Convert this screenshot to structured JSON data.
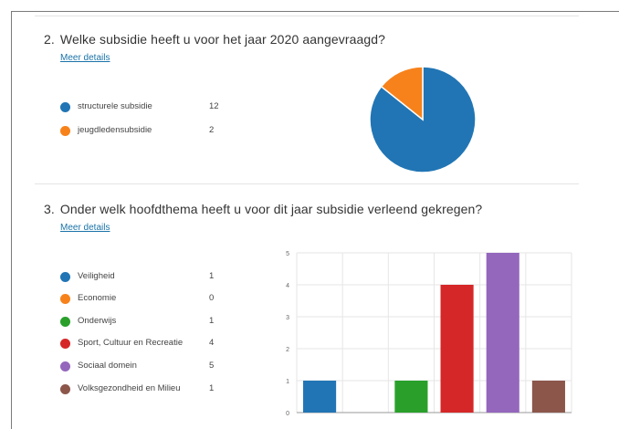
{
  "questions": [
    {
      "number": "2.",
      "title": "Welke subsidie heeft u voor het jaar 2020 aangevraagd?",
      "more_label": "Meer details",
      "legend": [
        {
          "label": "structurele subsidie",
          "count": "12",
          "color": "#2175b4"
        },
        {
          "label": "jeugdledensubsidie",
          "count": "2",
          "color": "#f7821b"
        }
      ]
    },
    {
      "number": "3.",
      "title": "Onder welk hoofdthema heeft u voor dit jaar subsidie verleend gekregen?",
      "more_label": "Meer details",
      "legend": [
        {
          "label": "Veiligheid",
          "count": "1",
          "color": "#2175b4"
        },
        {
          "label": "Economie",
          "count": "0",
          "color": "#f7821b"
        },
        {
          "label": "Onderwijs",
          "count": "1",
          "color": "#2aa02b"
        },
        {
          "label": "Sport, Cultuur en Recreatie",
          "count": "4",
          "color": "#d62728"
        },
        {
          "label": "Sociaal domein",
          "count": "5",
          "color": "#9467bd"
        },
        {
          "label": "Volksgezondheid en Milieu",
          "count": "1",
          "color": "#8c564b"
        }
      ]
    }
  ],
  "chart_data": [
    {
      "type": "pie",
      "categories": [
        "structurele subsidie",
        "jeugdledensubsidie"
      ],
      "values": [
        12,
        2
      ],
      "colors": [
        "#2175b4",
        "#f7821b"
      ]
    },
    {
      "type": "bar",
      "categories": [
        "Veiligheid",
        "Economie",
        "Onderwijs",
        "Sport, Cultuur en Recreatie",
        "Sociaal domein",
        "Volksgezondheid en Milieu"
      ],
      "values": [
        1,
        0,
        1,
        4,
        5,
        1
      ],
      "colors": [
        "#2175b4",
        "#f7821b",
        "#2aa02b",
        "#d62728",
        "#9467bd",
        "#8c564b"
      ],
      "ylim": [
        0,
        5
      ],
      "yticks": [
        "0",
        "1",
        "2",
        "3",
        "4",
        "5"
      ],
      "grid": true
    }
  ]
}
